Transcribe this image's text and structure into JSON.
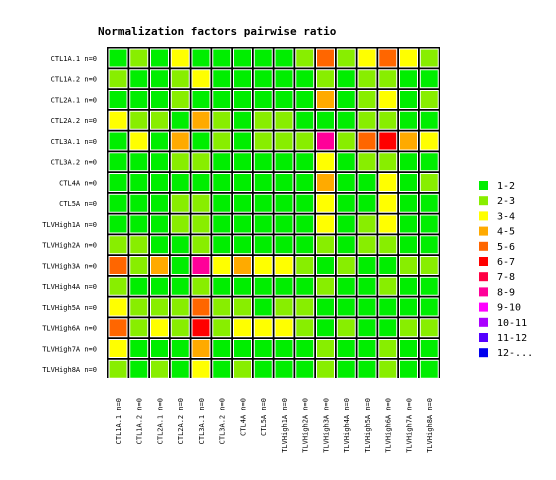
{
  "chart_data": {
    "type": "heatmap",
    "title": "Normalization factors pairwise ratio",
    "xlabel": "",
    "ylabel": "",
    "rows": [
      "CTL1A.1 n=0",
      "CTL1A.2 n=0",
      "CTL2A.1 n=0",
      "CTL2A.2 n=0",
      "CTL3A.1 n=0",
      "CTL3A.2 n=0",
      "CTL4A n=0",
      "CTL5A n=0",
      "TLVHigh1A n=0",
      "TLVHigh2A n=0",
      "TLVHigh3A n=0",
      "TLVHigh4A n=0",
      "TLVHigh5A n=0",
      "TLVHigh6A n=0",
      "TLVHigh7A n=0",
      "TLVHigh8A n=0"
    ],
    "columns": [
      "CTL1A.1 n=0",
      "CTL1A.2 n=0",
      "CTL2A.1 n=0",
      "CTL2A.2 n=0",
      "CTL3A.1 n=0",
      "CTL3A.2 n=0",
      "CTL4A n=0",
      "CTL5A n=0",
      "TLVHigh1A n=0",
      "TLVHigh2A n=0",
      "TLVHigh3A n=0",
      "TLVHigh4A n=0",
      "TLVHigh5A n=0",
      "TLVHigh6A n=0",
      "TLVHigh7A n=0",
      "TLVHigh8A n=0"
    ],
    "legend": {
      "position": "right",
      "labels": [
        "1-2",
        "2-3",
        "3-4",
        "4-5",
        "5-6",
        "6-7",
        "7-8",
        "8-9",
        "9-10",
        "10-11",
        "11-12",
        "12-..."
      ],
      "colors": [
        "#00ee00",
        "#88ee00",
        "#ffff00",
        "#ffaa00",
        "#ff6600",
        "#ff0000",
        "#ff0044",
        "#ff0099",
        "#ff00ff",
        "#aa00ff",
        "#5500ff",
        "#0000ee"
      ]
    },
    "categories_matrix": [
      [
        0,
        1,
        0,
        2,
        0,
        0,
        0,
        0,
        0,
        1,
        4,
        1,
        2,
        4,
        2,
        1
      ],
      [
        1,
        0,
        0,
        1,
        2,
        0,
        0,
        0,
        0,
        0,
        1,
        0,
        1,
        1,
        0,
        0
      ],
      [
        0,
        0,
        0,
        1,
        0,
        0,
        0,
        0,
        0,
        0,
        3,
        0,
        1,
        2,
        0,
        1
      ],
      [
        2,
        1,
        1,
        0,
        3,
        1,
        0,
        1,
        1,
        0,
        0,
        0,
        1,
        1,
        0,
        0
      ],
      [
        0,
        2,
        0,
        3,
        0,
        1,
        0,
        1,
        1,
        1,
        7,
        1,
        4,
        5,
        3,
        2
      ],
      [
        0,
        0,
        0,
        1,
        1,
        0,
        0,
        0,
        0,
        0,
        2,
        0,
        1,
        1,
        0,
        0
      ],
      [
        0,
        0,
        0,
        0,
        0,
        0,
        0,
        0,
        0,
        0,
        3,
        0,
        0,
        2,
        0,
        1
      ],
      [
        0,
        0,
        0,
        1,
        1,
        0,
        0,
        0,
        0,
        0,
        2,
        0,
        0,
        2,
        0,
        0
      ],
      [
        0,
        0,
        0,
        1,
        1,
        0,
        0,
        0,
        0,
        0,
        2,
        0,
        1,
        2,
        0,
        0
      ],
      [
        1,
        1,
        0,
        0,
        1,
        0,
        0,
        0,
        0,
        0,
        1,
        0,
        1,
        1,
        0,
        0
      ],
      [
        4,
        1,
        3,
        0,
        7,
        2,
        3,
        2,
        2,
        1,
        0,
        1,
        0,
        0,
        1,
        1
      ],
      [
        1,
        0,
        0,
        0,
        1,
        0,
        0,
        0,
        0,
        0,
        1,
        0,
        0,
        1,
        0,
        0
      ],
      [
        2,
        1,
        1,
        1,
        4,
        1,
        1,
        0,
        1,
        1,
        0,
        0,
        0,
        0,
        0,
        0
      ],
      [
        4,
        1,
        2,
        1,
        5,
        1,
        2,
        2,
        2,
        1,
        0,
        1,
        0,
        0,
        1,
        1
      ],
      [
        2,
        0,
        0,
        0,
        3,
        0,
        0,
        0,
        0,
        0,
        1,
        0,
        0,
        1,
        0,
        0
      ],
      [
        1,
        0,
        1,
        0,
        2,
        0,
        1,
        0,
        0,
        0,
        1,
        0,
        0,
        1,
        0,
        0
      ]
    ]
  }
}
